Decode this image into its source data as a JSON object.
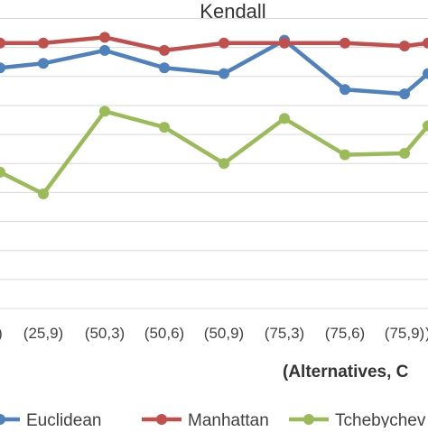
{
  "chart_data": {
    "type": "line",
    "title": "Kendall",
    "xlabel": "(Alternatives, C",
    "ylabel": "",
    "categories": [
      ")",
      "(25,9)",
      "(50,3)",
      "(50,6)",
      "(50,9)",
      "(75,3)",
      "(75,6)",
      "(75,9)",
      ")"
    ],
    "ylim": [
      0,
      1
    ],
    "grid": true,
    "legend_position": "bottom",
    "series": [
      {
        "name": "Euclidean",
        "color": "#4F81BD",
        "values": [
          0.83,
          0.845,
          0.89,
          0.83,
          0.81,
          0.925,
          0.755,
          0.74,
          0.81
        ]
      },
      {
        "name": "Manhattan",
        "color": "#C0504D",
        "values": [
          0.915,
          0.915,
          0.935,
          0.89,
          0.915,
          0.915,
          0.915,
          0.905,
          0.915
        ]
      },
      {
        "name": "Tchebychev",
        "color": "#9BBB59",
        "values": [
          0.47,
          0.395,
          0.68,
          0.625,
          0.5,
          0.655,
          0.53,
          0.535,
          0.63
        ]
      }
    ]
  }
}
